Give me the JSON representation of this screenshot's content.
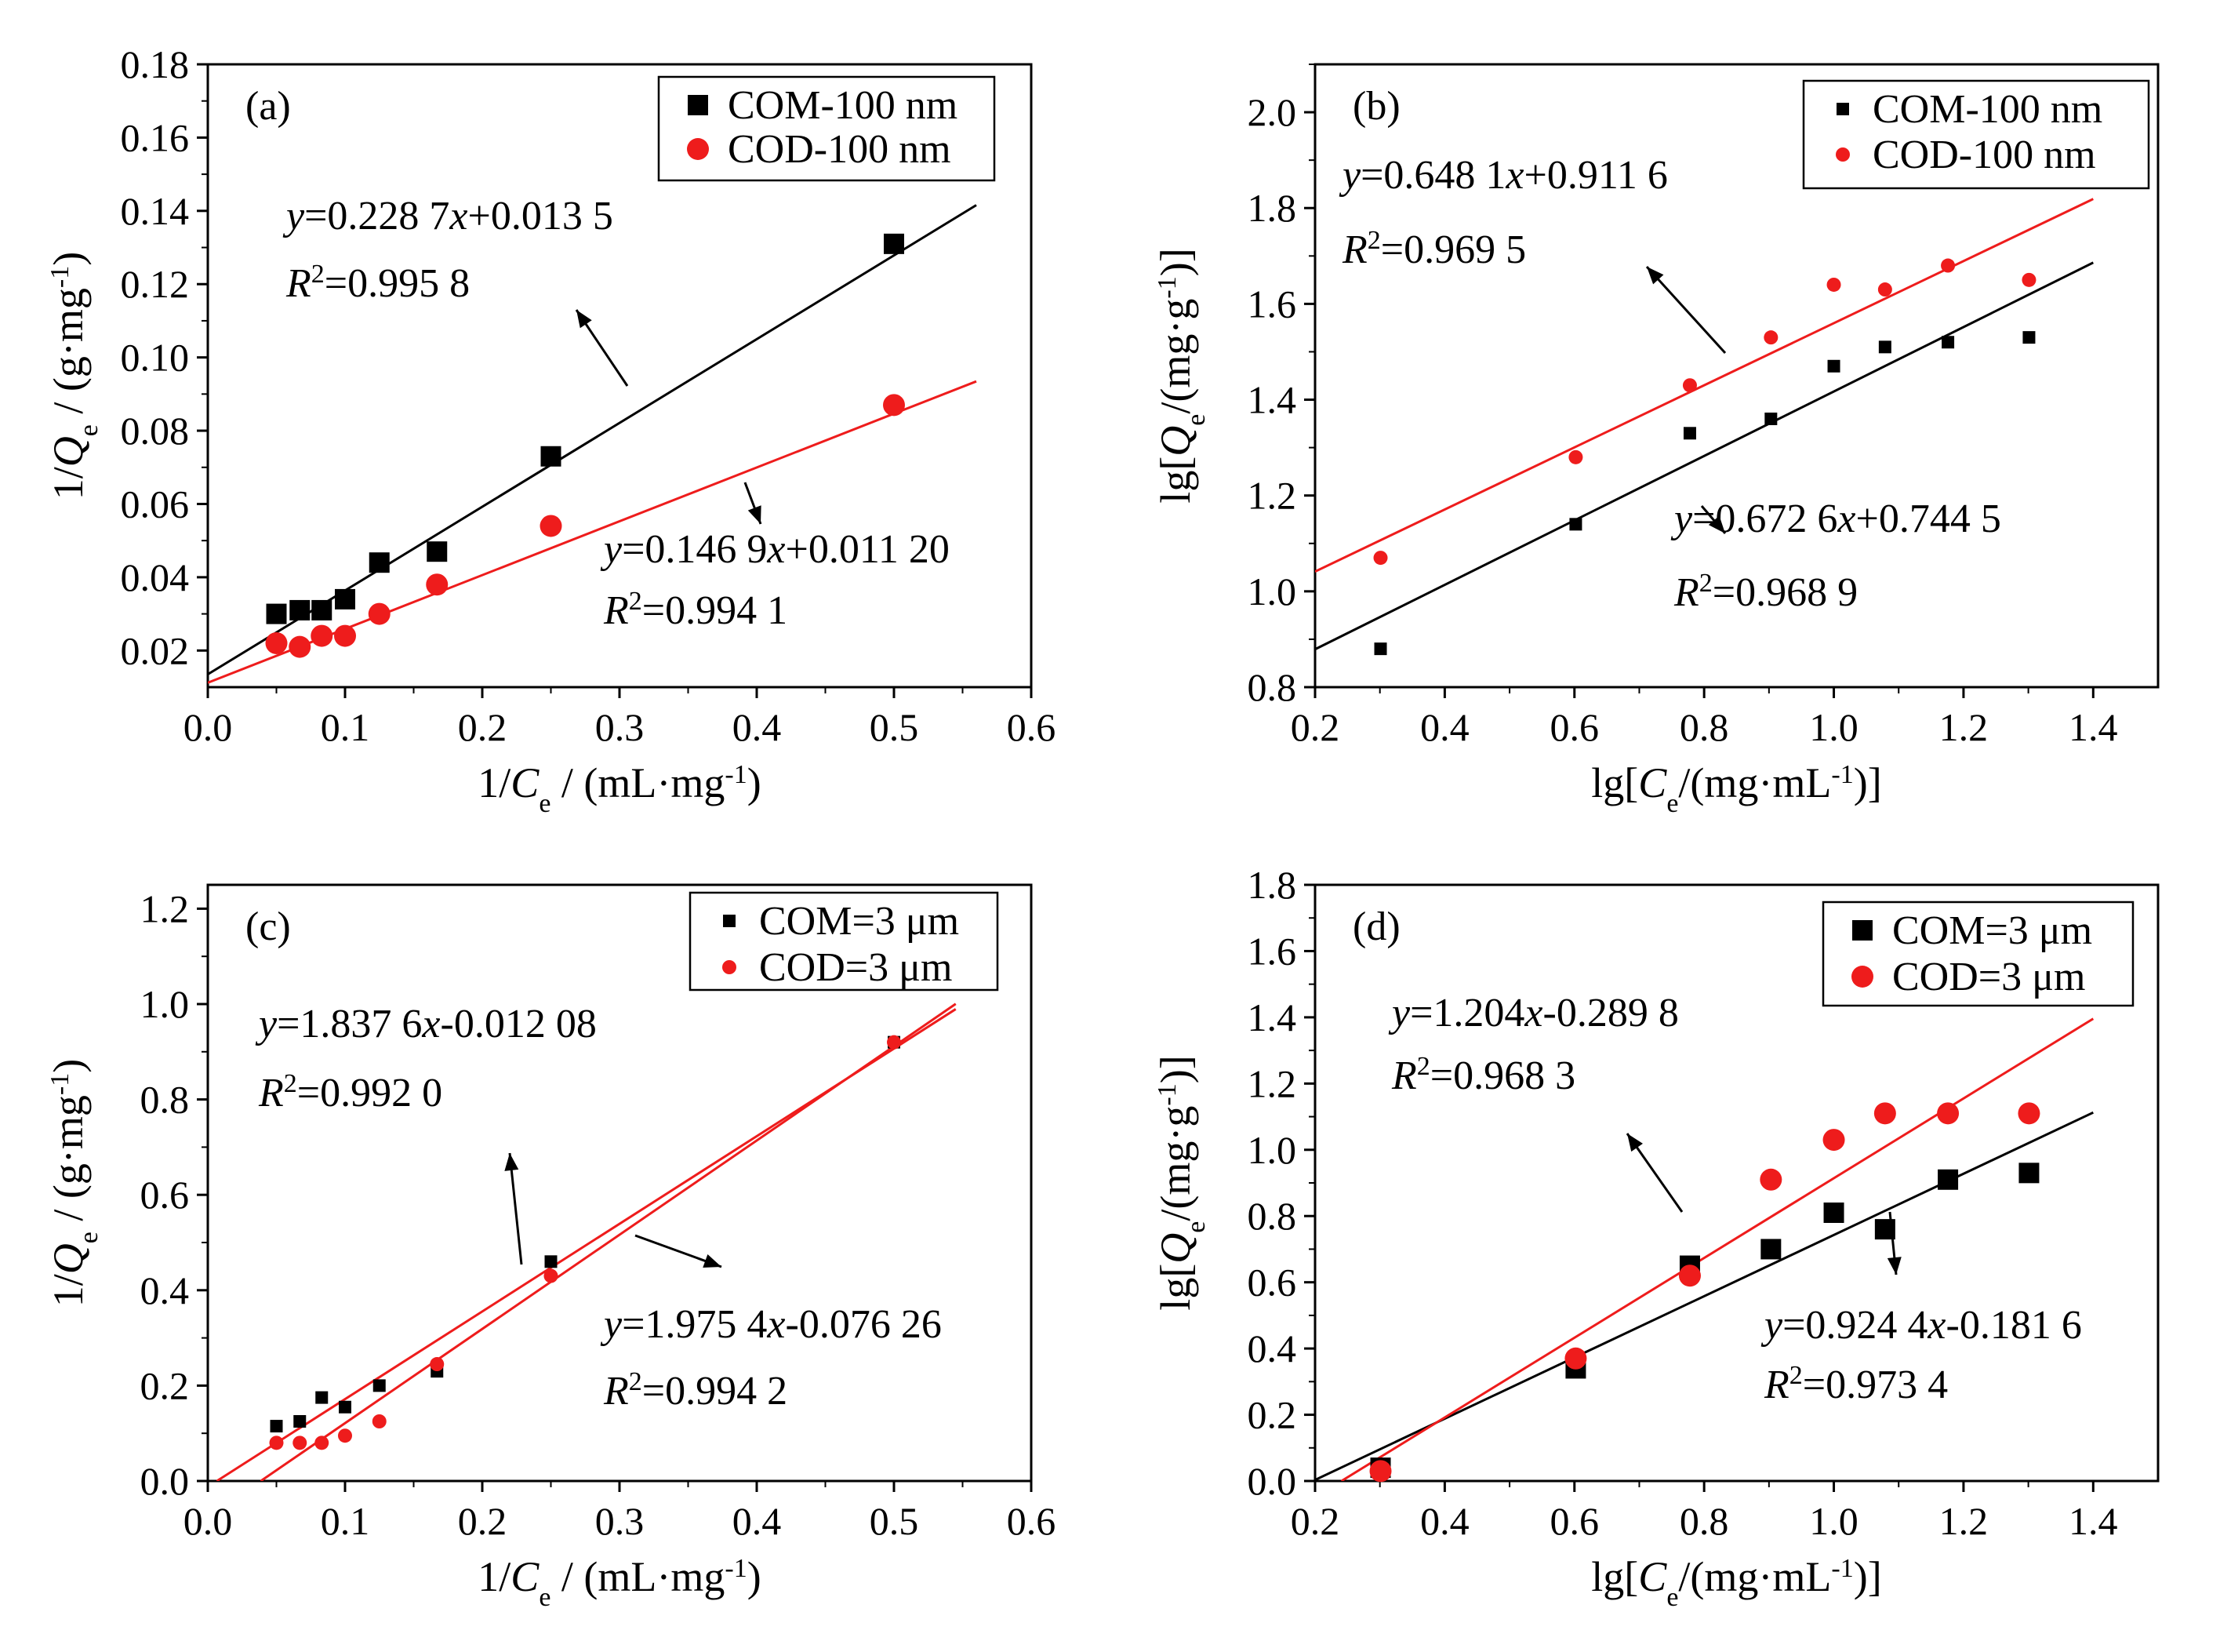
{
  "colors": {
    "black": "#000000",
    "red": "#ee1c1c",
    "background": "#ffffff"
  },
  "chart_data": [
    {
      "type": "scatter",
      "panel": "(a)",
      "xlabel": "1/Ce / (mL·mg-1)",
      "ylabel": "1/Qe / (g·mg-1)",
      "xlim": [
        0.0,
        0.6
      ],
      "ylim": [
        0.01,
        0.18
      ],
      "xticks": [
        "0.0",
        "0.1",
        "0.2",
        "0.3",
        "0.4",
        "0.5",
        "0.6"
      ],
      "yticks": [
        "0.02",
        "0.04",
        "0.06",
        "0.08",
        "0.10",
        "0.12",
        "0.14",
        "0.16",
        "0.18"
      ],
      "legend_position": "top-right",
      "series": [
        {
          "name": "COM-100 nm",
          "color": "#000000",
          "marker": "square",
          "x": [
            0.05,
            0.067,
            0.083,
            0.1,
            0.125,
            0.167,
            0.25,
            0.5
          ],
          "y": [
            0.03,
            0.031,
            0.031,
            0.034,
            0.044,
            0.047,
            0.073,
            0.131
          ],
          "fit": {
            "slope": 0.2287,
            "intercept": 0.0135,
            "x_range": [
              0.0,
              0.56
            ],
            "equation": "y=0.228 7x+0.013 5",
            "r2": "R2=0.995 8"
          }
        },
        {
          "name": "COD-100 nm",
          "color": "#ee1c1c",
          "marker": "circle",
          "x": [
            0.05,
            0.067,
            0.083,
            0.1,
            0.125,
            0.167,
            0.25,
            0.5
          ],
          "y": [
            0.022,
            0.021,
            0.024,
            0.024,
            0.03,
            0.038,
            0.054,
            0.087
          ],
          "fit": {
            "slope": 0.1469,
            "intercept": 0.0112,
            "x_range": [
              0.0,
              0.56
            ],
            "equation": "y=0.146 9x+0.011 20",
            "r2": "R2=0.994 1"
          }
        }
      ]
    },
    {
      "type": "scatter",
      "panel": "(b)",
      "xlabel": "lg[Ce/(mg·mL-1)]",
      "ylabel": "lg[Qe/(mg·g-1)]",
      "xlim": [
        0.2,
        1.5
      ],
      "ylim": [
        0.8,
        2.1
      ],
      "xticks": [
        "0.2",
        "0.4",
        "0.6",
        "0.8",
        "1.0",
        "1.2",
        "1.4"
      ],
      "yticks": [
        "0.8",
        "1.0",
        "1.2",
        "1.4",
        "1.6",
        "1.8",
        "2.0"
      ],
      "legend_position": "top-right",
      "series": [
        {
          "name": "COM-100 nm",
          "color": "#000000",
          "marker": "square",
          "x": [
            0.301,
            0.602,
            0.778,
            0.903,
            1.0,
            1.079,
            1.176,
            1.301
          ],
          "y": [
            0.88,
            1.14,
            1.33,
            1.36,
            1.47,
            1.51,
            1.52,
            1.53
          ],
          "fit": {
            "slope": 0.6726,
            "intercept": 0.7445,
            "x_range": [
              0.2,
              1.4
            ],
            "equation": "y=0.672 6x+0.744 5",
            "r2": "R2=0.968 9"
          }
        },
        {
          "name": "COD-100 nm",
          "color": "#ee1c1c",
          "marker": "circle",
          "x": [
            0.301,
            0.602,
            0.778,
            0.903,
            1.0,
            1.079,
            1.176,
            1.301
          ],
          "y": [
            1.07,
            1.28,
            1.43,
            1.53,
            1.64,
            1.63,
            1.68,
            1.65
          ],
          "fit": {
            "slope": 0.6481,
            "intercept": 0.9116,
            "x_range": [
              0.2,
              1.4
            ],
            "equation": "y=0.648 1x+0.911 6",
            "r2": "R2=0.969 5"
          }
        }
      ]
    },
    {
      "type": "scatter",
      "panel": "(c)",
      "xlabel": "1/Ce / (mL·mg-1)",
      "ylabel": "1/Qe / (g·mg-1)",
      "xlim": [
        0.0,
        0.6
      ],
      "ylim": [
        0.0,
        1.25
      ],
      "xticks": [
        "0.0",
        "0.1",
        "0.2",
        "0.3",
        "0.4",
        "0.5",
        "0.6"
      ],
      "yticks": [
        "0.0",
        "0.2",
        "0.4",
        "0.6",
        "0.8",
        "1.0",
        "1.2"
      ],
      "legend_position": "top-right",
      "series": [
        {
          "name": "COM=3 μm",
          "color": "#000000",
          "marker": "square",
          "x": [
            0.05,
            0.067,
            0.083,
            0.1,
            0.125,
            0.167,
            0.25,
            0.5
          ],
          "y": [
            0.115,
            0.125,
            0.175,
            0.155,
            0.2,
            0.23,
            0.46,
            0.92
          ],
          "fit": {
            "slope": 1.8376,
            "intercept": -0.01208,
            "x_range": [
              0.0066,
              0.545
            ],
            "equation": "y=1.837 6x-0.012 08",
            "r2": "R2=0.992 0"
          }
        },
        {
          "name": "COD=3 μm",
          "color": "#ee1c1c",
          "marker": "circle",
          "x": [
            0.05,
            0.067,
            0.083,
            0.1,
            0.125,
            0.167,
            0.25,
            0.5
          ],
          "y": [
            0.08,
            0.08,
            0.08,
            0.095,
            0.125,
            0.245,
            0.43,
            0.92
          ],
          "fit": {
            "slope": 1.9754,
            "intercept": -0.07626,
            "x_range": [
              0.0386,
              0.545
            ],
            "equation": "y=1.975 4x-0.076 26",
            "r2": "R2=0.994 2"
          }
        }
      ]
    },
    {
      "type": "scatter",
      "panel": "(d)",
      "xlabel": "lg[Ce/(mg·mL-1)]",
      "ylabel": "lg[Qe/(mg·g-1)]",
      "xlim": [
        0.2,
        1.5
      ],
      "ylim": [
        0.0,
        1.8
      ],
      "xticks": [
        "0.2",
        "0.4",
        "0.6",
        "0.8",
        "1.0",
        "1.2",
        "1.4"
      ],
      "yticks": [
        "0.0",
        "0.2",
        "0.4",
        "0.6",
        "0.8",
        "1.0",
        "1.2",
        "1.4",
        "1.6",
        "1.8"
      ],
      "legend_position": "top-right",
      "series": [
        {
          "name": "COM=3 μm",
          "color": "#000000",
          "marker": "square",
          "x": [
            0.301,
            0.602,
            0.778,
            0.903,
            1.0,
            1.079,
            1.176,
            1.301
          ],
          "y": [
            0.04,
            0.34,
            0.65,
            0.7,
            0.81,
            0.76,
            0.91,
            0.93
          ],
          "fit": {
            "slope": 0.9244,
            "intercept": -0.1816,
            "x_range": [
              0.2,
              1.4
            ],
            "equation": "y=0.924 4x-0.181 6",
            "r2": "R2=0.973 4"
          }
        },
        {
          "name": "COD=3 μm",
          "color": "#ee1c1c",
          "marker": "circle",
          "x": [
            0.301,
            0.602,
            0.778,
            0.903,
            1.0,
            1.079,
            1.176,
            1.301
          ],
          "y": [
            0.03,
            0.37,
            0.62,
            0.91,
            1.03,
            1.11,
            1.11,
            1.11
          ],
          "fit": {
            "slope": 1.204,
            "intercept": -0.2898,
            "x_range": [
              0.2407,
              1.4
            ],
            "equation": "y=1.204x-0.289 8",
            "r2": "R2=0.968 3"
          }
        }
      ]
    }
  ]
}
